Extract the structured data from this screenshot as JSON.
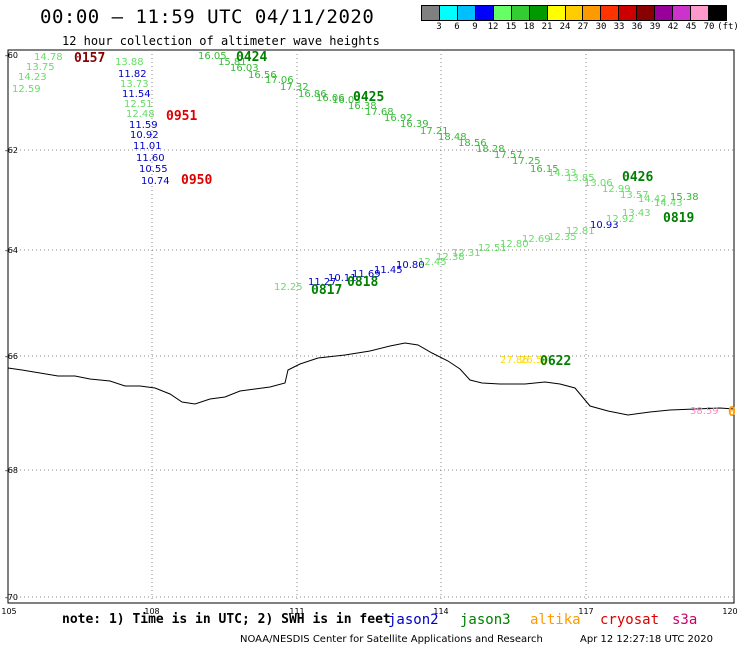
{
  "title": "00:00 – 11:59 UTC 04/11/2020",
  "subtitle": "12 hour collection of altimeter wave heights",
  "legend": {
    "unit_label": "(ft)",
    "colors": [
      "#808080",
      "#00ffff",
      "#00bfff",
      "#0000ff",
      "#66ff66",
      "#33cc33",
      "#009900",
      "#ffff00",
      "#ffcc00",
      "#ff9900",
      "#ff3300",
      "#cc0000",
      "#880000",
      "#990099",
      "#cc33cc",
      "#ff99cc",
      "#000000"
    ],
    "labels": [
      "3",
      "6",
      "9",
      "12",
      "15",
      "18",
      "21",
      "24",
      "27",
      "30",
      "33",
      "36",
      "39",
      "42",
      "45",
      "70"
    ]
  },
  "axes": {
    "lon_labels": [
      "105",
      "108",
      "111",
      "114",
      "117",
      "120"
    ],
    "lat_labels": [
      "-60",
      "-62",
      "-64",
      "-66",
      "-68",
      "-70"
    ]
  },
  "note": "note: 1) Time is in UTC; 2) SWH is in feet",
  "satellites": [
    "jason2",
    "jason3",
    "altika",
    "cryosat",
    "s3a"
  ],
  "footer": "NOAA/NESDIS Center for Satellite Applications and Research",
  "footer_date": "Apr 12 12:27:18 UTC 2020",
  "time_labels": [
    {
      "text": "0157",
      "color": "#880000"
    },
    {
      "text": "0951",
      "color": "#dd0000"
    },
    {
      "text": "0950",
      "color": "#dd0000"
    },
    {
      "text": "0424",
      "color": "#008000"
    },
    {
      "text": "0425",
      "color": "#008000"
    },
    {
      "text": "0426",
      "color": "#008000"
    },
    {
      "text": "0819",
      "color": "#008000"
    },
    {
      "text": "0817",
      "color": "#008000"
    },
    {
      "text": "0818",
      "color": "#008000"
    },
    {
      "text": "0622",
      "color": "#008000"
    },
    {
      "text": "0",
      "color": "#ff9900"
    }
  ],
  "swh_values": [
    {
      "text": "14.78",
      "color": "#66dd66"
    },
    {
      "text": "13.75",
      "color": "#66dd66"
    },
    {
      "text": "14.23",
      "color": "#66dd66"
    },
    {
      "text": "12.59",
      "color": "#66dd66"
    },
    {
      "text": "13.88",
      "color": "#66dd66"
    },
    {
      "text": "11.82",
      "color": "#0000cc"
    },
    {
      "text": "13.73",
      "color": "#66dd66"
    },
    {
      "text": "11.54",
      "color": "#0000cc"
    },
    {
      "text": "12.51",
      "color": "#66dd66"
    },
    {
      "text": "12.48",
      "color": "#66dd66"
    },
    {
      "text": "11.59",
      "color": "#0000cc"
    },
    {
      "text": "10.92",
      "color": "#0000cc"
    },
    {
      "text": "11.01",
      "color": "#0000cc"
    },
    {
      "text": "11.60",
      "color": "#0000cc"
    },
    {
      "text": "10.55",
      "color": "#0000cc"
    },
    {
      "text": "10.74",
      "color": "#0000cc"
    },
    {
      "text": "16.05",
      "color": "#33bb33"
    },
    {
      "text": "15.81",
      "color": "#33bb33"
    },
    {
      "text": "16.03",
      "color": "#33bb33"
    },
    {
      "text": "16.56",
      "color": "#33bb33"
    },
    {
      "text": "17.06",
      "color": "#33bb33"
    },
    {
      "text": "17.32",
      "color": "#33bb33"
    },
    {
      "text": "16.86",
      "color": "#33bb33"
    },
    {
      "text": "16.06",
      "color": "#33bb33"
    },
    {
      "text": "16.03",
      "color": "#33bb33"
    },
    {
      "text": "16.38",
      "color": "#33bb33"
    },
    {
      "text": "17.68",
      "color": "#33bb33"
    },
    {
      "text": "16.92",
      "color": "#33bb33"
    },
    {
      "text": "16.39",
      "color": "#33bb33"
    },
    {
      "text": "17.21",
      "color": "#33bb33"
    },
    {
      "text": "18.48",
      "color": "#33bb33"
    },
    {
      "text": "18.56",
      "color": "#33bb33"
    },
    {
      "text": "18.28",
      "color": "#33bb33"
    },
    {
      "text": "17.57",
      "color": "#33bb33"
    },
    {
      "text": "17.25",
      "color": "#33bb33"
    },
    {
      "text": "16.15",
      "color": "#33bb33"
    },
    {
      "text": "14.33",
      "color": "#66dd66"
    },
    {
      "text": "13.85",
      "color": "#66dd66"
    },
    {
      "text": "13.06",
      "color": "#66dd66"
    },
    {
      "text": "12.99",
      "color": "#66dd66"
    },
    {
      "text": "13.57",
      "color": "#66dd66"
    },
    {
      "text": "14.42",
      "color": "#66dd66"
    },
    {
      "text": "14.43",
      "color": "#66dd66"
    },
    {
      "text": "15.38",
      "color": "#33bb33"
    },
    {
      "text": "10.93",
      "color": "#0000cc"
    },
    {
      "text": "12.92",
      "color": "#66dd66"
    },
    {
      "text": "13.43",
      "color": "#66dd66"
    },
    {
      "text": "12.81",
      "color": "#66dd66"
    },
    {
      "text": "12.35",
      "color": "#66dd66"
    },
    {
      "text": "12.69",
      "color": "#66dd66"
    },
    {
      "text": "12.80",
      "color": "#66dd66"
    },
    {
      "text": "12.51",
      "color": "#66dd66"
    },
    {
      "text": "12.31",
      "color": "#66dd66"
    },
    {
      "text": "12.38",
      "color": "#66dd66"
    },
    {
      "text": "12.45",
      "color": "#66dd66"
    },
    {
      "text": "10.80",
      "color": "#0000cc"
    },
    {
      "text": "11.45",
      "color": "#0000cc"
    },
    {
      "text": "11.69",
      "color": "#0000cc"
    },
    {
      "text": "10.11",
      "color": "#0000cc"
    },
    {
      "text": "11.27",
      "color": "#0000cc"
    },
    {
      "text": "12.25",
      "color": "#66dd66"
    },
    {
      "text": "27.86",
      "color": "#ffdd00"
    },
    {
      "text": "26.50",
      "color": "#ffdd00"
    },
    {
      "text": "38.59",
      "color": "#ff88cc"
    }
  ]
}
